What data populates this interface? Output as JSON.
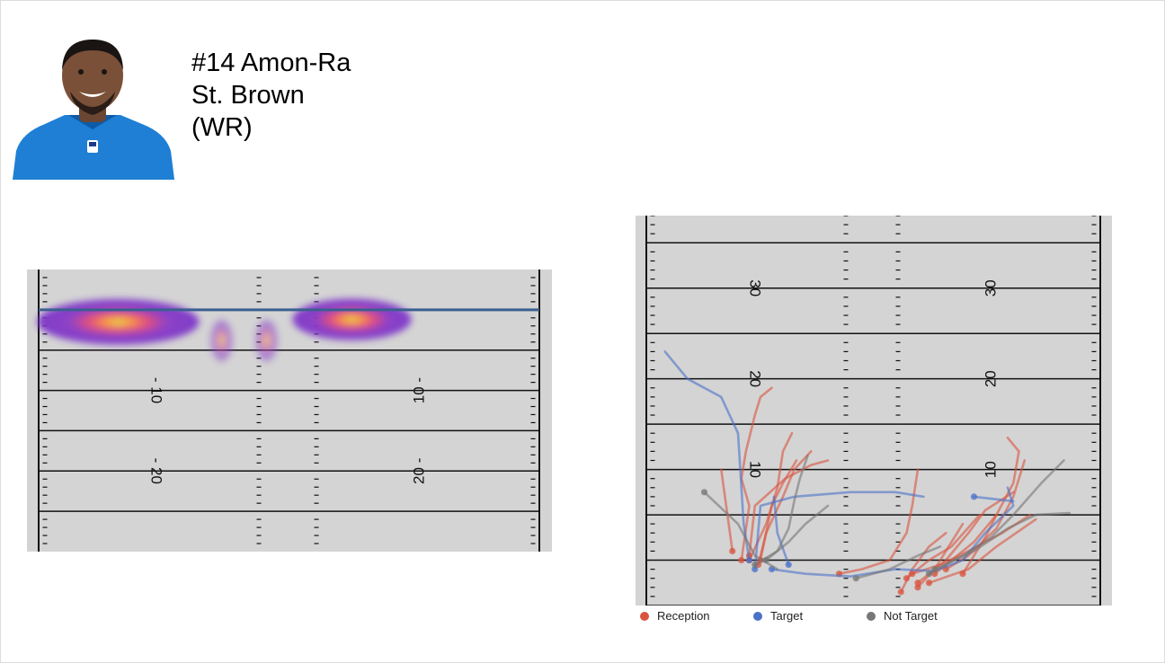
{
  "header": {
    "number_position": "#14 Amon-Ra",
    "surname": "St. Brown",
    "position": "(WR)"
  },
  "photo": {
    "icon": "player-headshot",
    "jersey_color": "#1f7fd4"
  },
  "colors": {
    "field": "#d4d4d4",
    "line": "#111111",
    "line_of_scrimmage": "#3b5f8f",
    "reception": "#d9533e",
    "target": "#4a72c8",
    "not_target": "#777777"
  },
  "chart_data": [
    {
      "type": "heatmap",
      "field_orientation": "horizontal",
      "y_range": [
        -30,
        5
      ],
      "yard_labels": [
        {
          "text": "- 10",
          "yard": -10,
          "side": "left"
        },
        {
          "text": "- 20",
          "yard": -20,
          "side": "left"
        },
        {
          "text": "10 -",
          "yard": -10,
          "side": "right"
        },
        {
          "text": "20 -",
          "yard": -20,
          "side": "right"
        }
      ],
      "line_of_scrimmage": 0,
      "blobs": [
        {
          "x": -19,
          "y": -1.5,
          "sx": 7.5,
          "sy": 2.2,
          "peak": 1.0
        },
        {
          "x": -7.5,
          "y": -3.8,
          "sx": 1.0,
          "sy": 2.0,
          "peak": 0.55
        },
        {
          "x": -2.5,
          "y": -3.8,
          "sx": 1.0,
          "sy": 2.0,
          "peak": 0.55
        },
        {
          "x": 7,
          "y": -1.2,
          "sx": 5.5,
          "sy": 2.0,
          "peak": 1.0
        }
      ]
    },
    {
      "type": "line",
      "field_orientation": "vertical",
      "y_range": [
        -5,
        38
      ],
      "yard_labels": [
        {
          "text": "30",
          "yard": 30
        },
        {
          "text": "20",
          "yard": 20
        },
        {
          "text": "10",
          "yard": 10
        }
      ],
      "legend": [
        {
          "label": "Reception",
          "color_key": "reception"
        },
        {
          "label": "Target",
          "color_key": "target"
        },
        {
          "label": "Not Target",
          "color_key": "not_target"
        }
      ],
      "series": [
        {
          "outcome": "reception",
          "points": [
            [
              -11.7,
              0
            ],
            [
              -11,
              6
            ],
            [
              -11.7,
              9
            ],
            [
              -11.3,
              12
            ],
            [
              -10.5,
              16
            ],
            [
              -10,
              18
            ],
            [
              -9,
              19
            ]
          ]
        },
        {
          "outcome": "reception",
          "points": [
            [
              -11,
              0
            ],
            [
              -9.5,
              4
            ],
            [
              -8.5,
              8
            ],
            [
              -8,
              12
            ],
            [
              -7.2,
              14
            ]
          ]
        },
        {
          "outcome": "reception",
          "points": [
            [
              -10.2,
              -0.5
            ],
            [
              -9.5,
              3
            ],
            [
              -8,
              7
            ],
            [
              -7,
              10
            ],
            [
              -5.5,
              12
            ]
          ]
        },
        {
          "outcome": "reception",
          "points": [
            [
              -10,
              0
            ],
            [
              -9,
              6
            ],
            [
              -8,
              8.5
            ],
            [
              -6.8,
              11
            ]
          ]
        },
        {
          "outcome": "reception",
          "points": [
            [
              -11,
              0.5
            ],
            [
              -10.5,
              6
            ],
            [
              -7.8,
              9
            ],
            [
              -5.5,
              10.5
            ],
            [
              -4,
              11
            ]
          ]
        },
        {
          "outcome": "reception",
          "points": [
            [
              -12.5,
              1
            ],
            [
              -13.5,
              10
            ]
          ]
        },
        {
          "outcome": "reception",
          "points": [
            [
              -3,
              -1.5
            ],
            [
              -1,
              -1
            ],
            [
              1.5,
              0
            ],
            [
              3,
              3
            ],
            [
              3.5,
              6
            ],
            [
              4,
              10
            ]
          ]
        },
        {
          "outcome": "reception",
          "points": [
            [
              2.5,
              -3.5
            ],
            [
              3.5,
              -1
            ],
            [
              5,
              1.5
            ],
            [
              6.5,
              3
            ]
          ]
        },
        {
          "outcome": "reception",
          "points": [
            [
              3,
              -2
            ],
            [
              5,
              0
            ],
            [
              7,
              1.5
            ],
            [
              9.5,
              5
            ]
          ]
        },
        {
          "outcome": "reception",
          "points": [
            [
              4,
              -2.5
            ],
            [
              6.5,
              0
            ],
            [
              8.5,
              3
            ],
            [
              10,
              5.5
            ],
            [
              12.5,
              7.5
            ]
          ]
        },
        {
          "outcome": "reception",
          "points": [
            [
              5.5,
              -1.5
            ],
            [
              7.5,
              0.5
            ],
            [
              9,
              2
            ],
            [
              11,
              5
            ]
          ]
        },
        {
          "outcome": "reception",
          "points": [
            [
              6.5,
              -1
            ],
            [
              8.5,
              0.5
            ],
            [
              11,
              3.5
            ],
            [
              12.5,
              7
            ],
            [
              13.5,
              11
            ]
          ]
        },
        {
          "outcome": "reception",
          "points": [
            [
              4,
              -3
            ],
            [
              5.5,
              -1
            ],
            [
              7,
              2
            ],
            [
              8,
              4
            ]
          ]
        },
        {
          "outcome": "reception",
          "points": [
            [
              8,
              -1.5
            ],
            [
              10,
              2.5
            ],
            [
              11,
              5
            ],
            [
              12.5,
              8.5
            ],
            [
              13,
              12
            ],
            [
              12,
              13.5
            ]
          ]
        },
        {
          "outcome": "reception",
          "points": [
            [
              3.5,
              -1.5
            ],
            [
              6,
              -0.5
            ],
            [
              8.5,
              1
            ],
            [
              11.5,
              3
            ],
            [
              14,
              5
            ]
          ]
        },
        {
          "outcome": "reception",
          "points": [
            [
              5,
              -2.5
            ],
            [
              8.5,
              -1
            ],
            [
              11,
              1.5
            ],
            [
              14.5,
              4.5
            ]
          ]
        },
        {
          "outcome": "target",
          "points": [
            [
              -11,
              0
            ],
            [
              -11.5,
              4
            ],
            [
              -12,
              14
            ],
            [
              -13.5,
              18
            ],
            [
              -16.5,
              20
            ],
            [
              -18.5,
              23
            ]
          ]
        },
        {
          "outcome": "target",
          "points": [
            [
              -9,
              -1
            ],
            [
              -6,
              -1.5
            ],
            [
              -2,
              -1.8
            ],
            [
              2,
              -1
            ],
            [
              5.5,
              -1.2
            ],
            [
              8,
              0
            ],
            [
              10,
              3
            ],
            [
              12.5,
              6
            ],
            [
              12,
              8
            ]
          ]
        },
        {
          "outcome": "target",
          "points": [
            [
              -10.5,
              -1
            ],
            [
              -10,
              6
            ],
            [
              -7,
              7
            ],
            [
              -2,
              7.5
            ],
            [
              2,
              7.5
            ],
            [
              4.5,
              7
            ]
          ]
        },
        {
          "outcome": "target",
          "points": [
            [
              -7.5,
              -0.5
            ],
            [
              -8.5,
              3
            ],
            [
              -8.8,
              7
            ]
          ]
        },
        {
          "outcome": "target",
          "points": [
            [
              9,
              7
            ],
            [
              12.5,
              6.5
            ]
          ]
        },
        {
          "outcome": "not_target",
          "points": [
            [
              -15,
              7.5
            ],
            [
              -12,
              4
            ],
            [
              -10.5,
              0.5
            ],
            [
              -8.5,
              -1
            ]
          ]
        },
        {
          "outcome": "not_target",
          "points": [
            [
              -10.5,
              -0.5
            ],
            [
              -8.5,
              1
            ],
            [
              -7.5,
              3.5
            ],
            [
              -7,
              6.5
            ],
            [
              -6.5,
              9
            ],
            [
              -5.8,
              11.5
            ]
          ]
        },
        {
          "outcome": "not_target",
          "points": [
            [
              -9.5,
              0
            ],
            [
              -7.5,
              2
            ],
            [
              -6,
              4
            ],
            [
              -4,
              6
            ]
          ]
        },
        {
          "outcome": "not_target",
          "points": [
            [
              -1.5,
              -2
            ],
            [
              1.5,
              -1
            ],
            [
              4,
              0.5
            ],
            [
              6,
              1.5
            ]
          ]
        },
        {
          "outcome": "not_target",
          "points": [
            [
              5,
              -1.5
            ],
            [
              8,
              0.5
            ],
            [
              10.5,
              2.5
            ],
            [
              12.5,
              5
            ],
            [
              15,
              8.5
            ],
            [
              17,
              11
            ]
          ]
        },
        {
          "outcome": "not_target",
          "points": [
            [
              5.5,
              -1
            ],
            [
              9,
              1
            ],
            [
              12,
              3.5
            ],
            [
              14.5,
              5
            ],
            [
              17.5,
              5.2
            ]
          ]
        }
      ]
    }
  ]
}
